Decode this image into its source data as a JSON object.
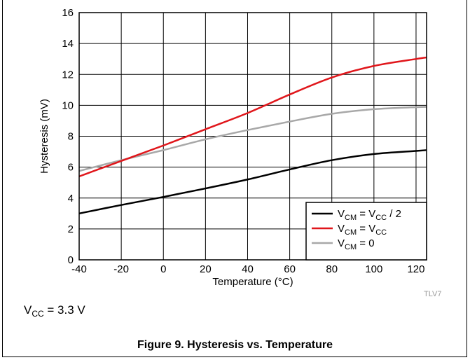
{
  "figure": {
    "caption": "Figure 9. Hysteresis vs. Temperature",
    "watermark": "TLV7",
    "condition": {
      "main": "V",
      "sub": "CC",
      "rest": " = 3.3 V"
    }
  },
  "colors": {
    "black": "#000000",
    "red": "#e0161b",
    "gray": "#a8a8a8",
    "grid": "#000000"
  },
  "chart_data": {
    "type": "line",
    "title": "",
    "xlabel": "Temperature (°C)",
    "ylabel": "Hysteresis (mV)",
    "xlim": [
      -40,
      125
    ],
    "ylim": [
      0,
      16
    ],
    "xticks": [
      -40,
      -20,
      0,
      20,
      40,
      60,
      80,
      100,
      120
    ],
    "yticks": [
      0,
      2,
      4,
      6,
      8,
      10,
      12,
      14,
      16
    ],
    "grid": true,
    "legend_position": "bottom-right",
    "series": [
      {
        "id": "vcm_half",
        "legend": {
          "a": "V",
          "a_sub": "CM",
          "b": " = V",
          "b_sub": "CC",
          "c": " / 2"
        },
        "color": "#000000",
        "x": [
          -40,
          -20,
          0,
          20,
          40,
          60,
          80,
          100,
          120,
          125
        ],
        "y": [
          3.0,
          3.55,
          4.07,
          4.62,
          5.2,
          5.85,
          6.45,
          6.85,
          7.05,
          7.1
        ]
      },
      {
        "id": "vcm_vcc",
        "legend": {
          "a": "V",
          "a_sub": "CM",
          "b": " = V",
          "b_sub": "CC",
          "c": ""
        },
        "color": "#e0161b",
        "x": [
          -40,
          -20,
          0,
          20,
          40,
          60,
          80,
          100,
          120,
          125
        ],
        "y": [
          5.4,
          6.4,
          7.4,
          8.45,
          9.5,
          10.7,
          11.8,
          12.55,
          13.0,
          13.1
        ]
      },
      {
        "id": "vcm_zero",
        "legend": {
          "a": "V",
          "a_sub": "CM",
          "b": " = 0",
          "b_sub": "",
          "c": ""
        },
        "color": "#a8a8a8",
        "x": [
          -40,
          -20,
          0,
          20,
          40,
          60,
          80,
          100,
          120,
          125
        ],
        "y": [
          5.75,
          6.45,
          7.1,
          7.8,
          8.4,
          8.95,
          9.45,
          9.75,
          9.88,
          9.9
        ]
      }
    ]
  }
}
